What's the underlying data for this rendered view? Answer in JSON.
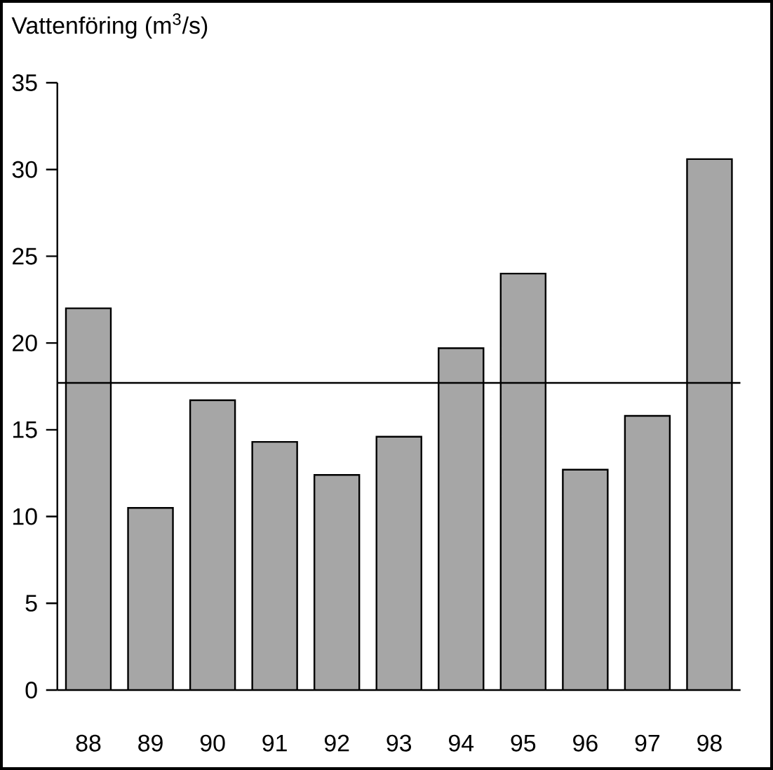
{
  "chart_data": {
    "type": "bar",
    "ylabel": "Vattenföring (m$^{3}$/s)",
    "categories": [
      "88",
      "89",
      "90",
      "91",
      "92",
      "93",
      "94",
      "95",
      "96",
      "97",
      "98"
    ],
    "values": [
      22.0,
      10.5,
      16.7,
      14.3,
      12.4,
      14.6,
      19.7,
      24.0,
      12.7,
      15.8,
      30.6
    ],
    "color": "#a6a6a6",
    "ylim": [
      0,
      35
    ],
    "yticks": [
      0,
      5,
      10,
      15,
      20,
      25,
      30,
      35
    ],
    "ref_lines": [
      {
        "axis": "y",
        "value": 17.7
      }
    ]
  }
}
